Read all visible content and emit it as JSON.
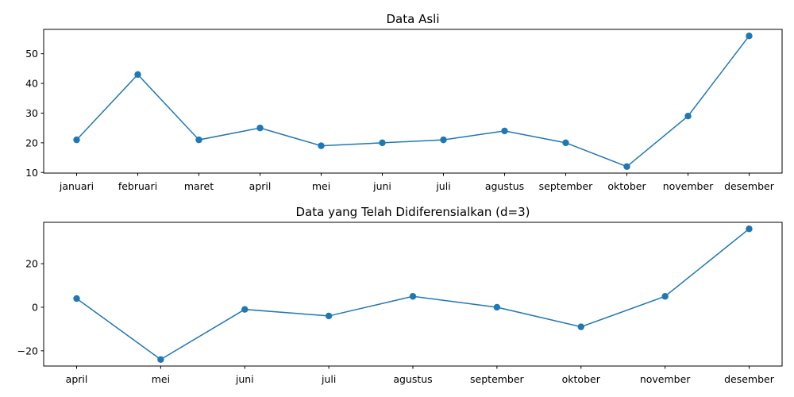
{
  "chart_data": [
    {
      "type": "line",
      "title": "Data Asli",
      "xlabel": "",
      "ylabel": "",
      "categories": [
        "januari",
        "februari",
        "maret",
        "april",
        "mei",
        "juni",
        "juli",
        "agustus",
        "september",
        "oktober",
        "november",
        "desember"
      ],
      "series": [
        {
          "values": [
            21,
            43,
            21,
            25,
            19,
            20,
            21,
            24,
            20,
            12,
            29,
            56
          ],
          "color": "#1f77b4",
          "marker": "circle"
        }
      ],
      "ylim": [
        9.8,
        58.2
      ],
      "yticks": [
        10,
        20,
        30,
        40,
        50
      ],
      "ytick_labels": [
        "10",
        "20",
        "30",
        "40",
        "50"
      ],
      "grid": false
    },
    {
      "type": "line",
      "title": "Data yang Telah Didiferensialkan (d=3)",
      "xlabel": "",
      "ylabel": "",
      "categories": [
        "april",
        "mei",
        "juni",
        "juli",
        "agustus",
        "september",
        "oktober",
        "november",
        "desember"
      ],
      "series": [
        {
          "values": [
            4,
            -24,
            -1,
            -4,
            5,
            0,
            -9,
            5,
            36
          ],
          "color": "#1f77b4",
          "marker": "circle"
        }
      ],
      "ylim": [
        -27,
        39
      ],
      "yticks": [
        -20,
        0,
        20
      ],
      "ytick_labels": [
        "−20",
        "0",
        "20"
      ],
      "grid": false
    }
  ]
}
